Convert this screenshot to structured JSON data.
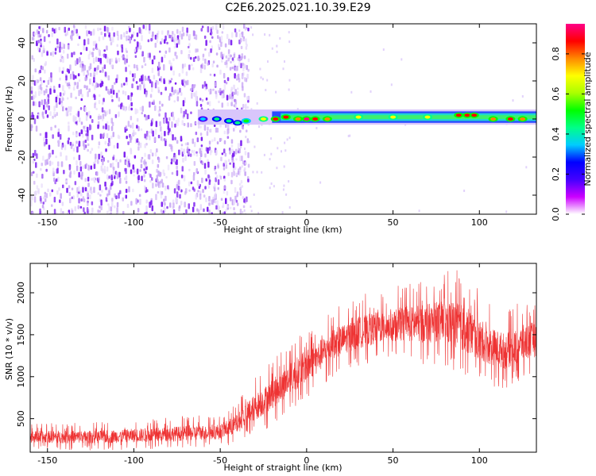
{
  "title": "C2E6.2025.021.10.39.E29",
  "chart_data": [
    {
      "type": "heatmap",
      "xlabel": "Height of straight line (km)",
      "ylabel": "Frequency (Hz)",
      "xlim": [
        -160,
        133
      ],
      "ylim": [
        -50,
        50
      ],
      "xticks": [
        -150,
        -100,
        -50,
        0,
        50,
        100
      ],
      "yticks": [
        -40,
        -20,
        0,
        20,
        40
      ],
      "colorbar": {
        "label": "Normalized spectral amplitude",
        "range": [
          0.0,
          0.95
        ],
        "ticks": [
          0.0,
          0.2,
          0.4,
          0.6,
          0.8
        ],
        "tick_labels": [
          "0.0",
          "0.2",
          "0.4",
          "0.6",
          "0.8"
        ],
        "colors": [
          "#ffffff",
          "#cc00ff",
          "#4400ff",
          "#0000ff",
          "#00ccff",
          "#00ff88",
          "#00ff00",
          "#aaff00",
          "#ffff00",
          "#ff8800",
          "#ff0000",
          "#ff0088"
        ]
      },
      "noise_region": {
        "x_start": -160,
        "x_end": -40,
        "freq_range": [
          -50,
          50
        ]
      },
      "signal_band": {
        "x_start": -63,
        "x_end": 133,
        "center_freq": 1,
        "half_width": 3
      },
      "signal_peaks": [
        {
          "x": -60,
          "f": 0,
          "amp": 0.35
        },
        {
          "x": -52,
          "f": 0,
          "amp": 0.4
        },
        {
          "x": -45,
          "f": -1,
          "amp": 0.45
        },
        {
          "x": -40,
          "f": -2,
          "amp": 0.4
        },
        {
          "x": -35,
          "f": -1,
          "amp": 0.55
        },
        {
          "x": -25,
          "f": 0,
          "amp": 0.7
        },
        {
          "x": -18,
          "f": 0,
          "amp": 0.9
        },
        {
          "x": -12,
          "f": 1,
          "amp": 0.85
        },
        {
          "x": -5,
          "f": 0,
          "amp": 0.8
        },
        {
          "x": 0,
          "f": 0,
          "amp": 0.92
        },
        {
          "x": 5,
          "f": 0,
          "amp": 0.85
        },
        {
          "x": 12,
          "f": 0,
          "amp": 0.8
        },
        {
          "x": 30,
          "f": 1,
          "amp": 0.7
        },
        {
          "x": 50,
          "f": 1,
          "amp": 0.65
        },
        {
          "x": 70,
          "f": 1,
          "amp": 0.7
        },
        {
          "x": 88,
          "f": 2,
          "amp": 0.85
        },
        {
          "x": 93,
          "f": 2,
          "amp": 0.9
        },
        {
          "x": 97,
          "f": 2,
          "amp": 0.88
        },
        {
          "x": 108,
          "f": 0,
          "amp": 0.8
        },
        {
          "x": 118,
          "f": 0,
          "amp": 0.85
        },
        {
          "x": 125,
          "f": 0,
          "amp": 0.8
        }
      ]
    },
    {
      "type": "line",
      "xlabel": "Height of straight line (km)",
      "ylabel": "SNR (10 * v/v)",
      "xlim": [
        -160,
        133
      ],
      "ylim": [
        100,
        2350
      ],
      "xticks": [
        -150,
        -100,
        -50,
        0,
        50,
        100
      ],
      "yticks": [
        500,
        1000,
        1500,
        2000
      ],
      "color": "#ee3333",
      "envelope": {
        "x": [
          -160,
          -120,
          -80,
          -50,
          -40,
          -35,
          -25,
          -15,
          -5,
          5,
          15,
          25,
          35,
          45,
          55,
          65,
          75,
          85,
          95,
          105,
          115,
          125,
          133
        ],
        "low": [
          130,
          120,
          130,
          150,
          200,
          250,
          350,
          500,
          650,
          800,
          1000,
          1100,
          1150,
          1200,
          1200,
          1150,
          1150,
          1050,
          950,
          900,
          850,
          950,
          1000
        ],
        "mid": [
          240,
          240,
          260,
          300,
          340,
          450,
          600,
          750,
          900,
          1050,
          1200,
          1300,
          1350,
          1400,
          1400,
          1400,
          1420,
          1400,
          1350,
          1200,
          1150,
          1300,
          1350
        ],
        "high": [
          450,
          460,
          520,
          560,
          700,
          900,
          1100,
          1300,
          1500,
          1650,
          1800,
          1900,
          2000,
          2050,
          2100,
          2150,
          2200,
          2300,
          2150,
          1900,
          1800,
          1900,
          1950
        ]
      }
    }
  ]
}
